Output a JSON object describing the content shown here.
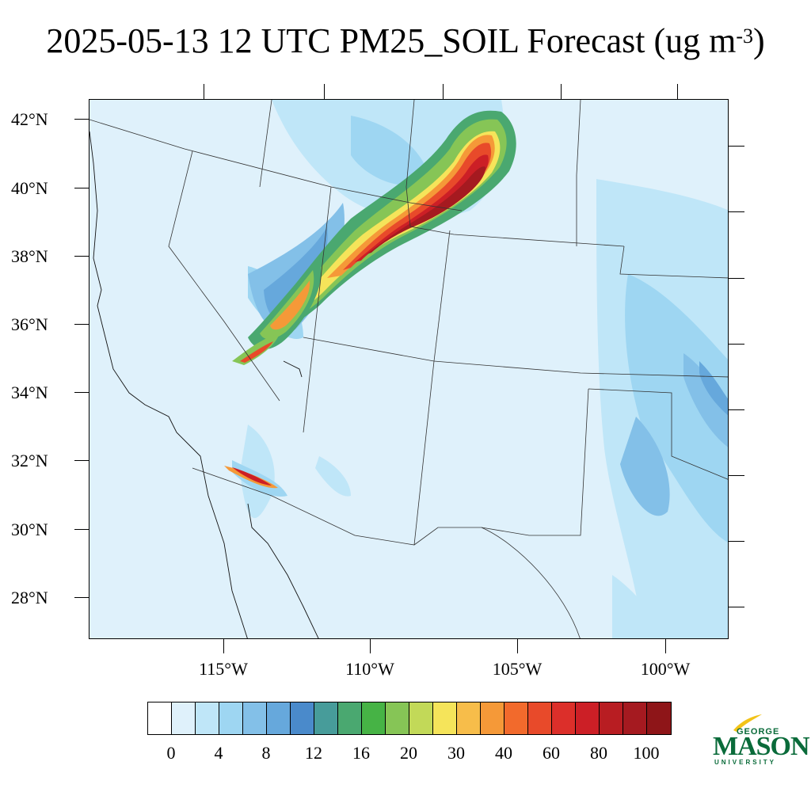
{
  "title": {
    "main": "2025-05-13 12 UTC PM25_SOIL Forecast (ug m",
    "exponent": "-3",
    "close": ")"
  },
  "map": {
    "lat_labels": [
      "42°N",
      "40°N",
      "38°N",
      "36°N",
      "34°N",
      "32°N",
      "30°N",
      "28°N"
    ],
    "lon_labels": [
      "115°W",
      "110°W",
      "105°W",
      "100°W"
    ],
    "background_color": "#dff1fb"
  },
  "colorbar": {
    "colors": [
      "#ffffff",
      "#dff1fb",
      "#bfe6f8",
      "#9ed6f2",
      "#83c0e8",
      "#66a8dc",
      "#4a8acb",
      "#479c9a",
      "#4aa870",
      "#46b345",
      "#86c556",
      "#c2d958",
      "#f5e45a",
      "#f7bd4a",
      "#f59938",
      "#f26a2c",
      "#e84a2a",
      "#dc2f2a",
      "#cc1f26",
      "#b81d22",
      "#a51a20",
      "#8e1518"
    ],
    "labels": [
      "0",
      "4",
      "8",
      "12",
      "16",
      "20",
      "30",
      "40",
      "60",
      "80",
      "100"
    ]
  },
  "logo": {
    "line1": "GEORGE",
    "line2": "MASON",
    "line3": "UNIVERSITY",
    "color": "#0a6b3a",
    "accent_color": "#f2c318"
  }
}
